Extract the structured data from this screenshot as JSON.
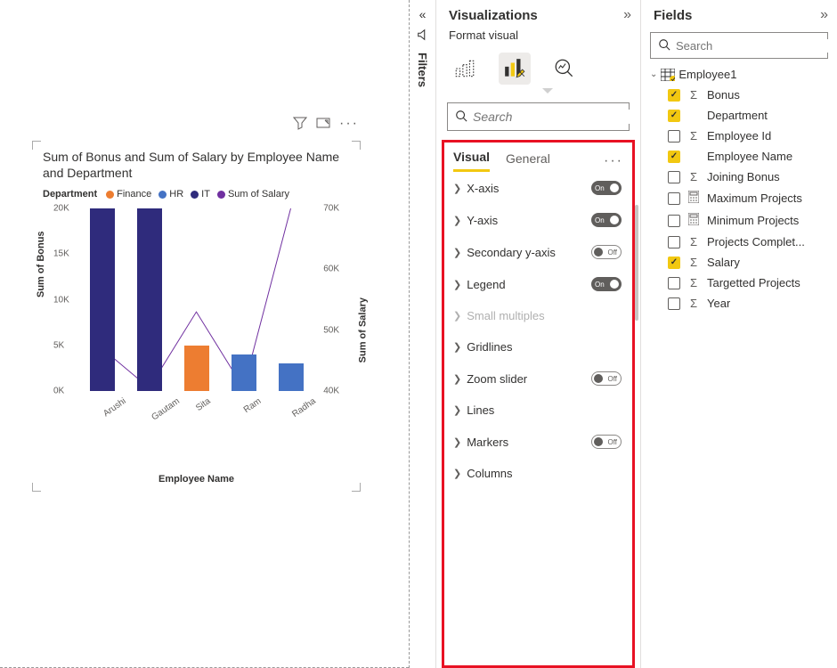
{
  "chart": {
    "title": "Sum of Bonus and Sum of Salary by Employee Name and Department",
    "legend_title": "Department",
    "legend_items": [
      {
        "label": "Finance",
        "color": "#ed7d31"
      },
      {
        "label": "HR",
        "color": "#4472c4"
      },
      {
        "label": "IT",
        "color": "#2f2b7c"
      },
      {
        "label": "Sum of Salary",
        "color": "#7030a0"
      }
    ],
    "x_axis": {
      "title": "Employee Name",
      "categories": [
        "Arushi",
        "Gautam",
        "Sita",
        "Ram",
        "Radha"
      ]
    },
    "y_left": {
      "title": "Sum of Bonus",
      "min": 0,
      "max": 20000,
      "ticks": [
        "0K",
        "5K",
        "10K",
        "15K",
        "20K"
      ]
    },
    "y_right": {
      "title": "Sum of Salary",
      "min": 40000,
      "max": 70000,
      "ticks": [
        "40K",
        "50K",
        "60K",
        "70K"
      ]
    },
    "bars": [
      {
        "x": 0,
        "value": 20000,
        "color": "#2f2b7c"
      },
      {
        "x": 1,
        "value": 20000,
        "color": "#2f2b7c"
      },
      {
        "x": 2,
        "value": 5000,
        "color": "#ed7d31"
      },
      {
        "x": 3,
        "value": 4000,
        "color": "#4472c4"
      },
      {
        "x": 4,
        "value": 3000,
        "color": "#4472c4"
      }
    ],
    "line": {
      "color": "#7030a0",
      "width": 2,
      "points": [
        {
          "x": 0,
          "value": 47000
        },
        {
          "x": 1,
          "value": 40500
        },
        {
          "x": 2,
          "value": 53000
        },
        {
          "x": 3,
          "value": 40500
        },
        {
          "x": 4,
          "value": 70000
        }
      ]
    }
  },
  "filters": {
    "label": "Filters"
  },
  "viz_pane": {
    "title": "Visualizations",
    "subtitle": "Format visual",
    "search_placeholder": "Search",
    "tabs": {
      "visual": "Visual",
      "general": "General"
    },
    "sections": [
      {
        "label": "X-axis",
        "toggle": "on"
      },
      {
        "label": "Y-axis",
        "toggle": "on"
      },
      {
        "label": "Secondary y-axis",
        "toggle": "off"
      },
      {
        "label": "Legend",
        "toggle": "on"
      },
      {
        "label": "Small multiples",
        "toggle": null,
        "disabled": true
      },
      {
        "label": "Gridlines",
        "toggle": null
      },
      {
        "label": "Zoom slider",
        "toggle": "off"
      },
      {
        "label": "Lines",
        "toggle": null
      },
      {
        "label": "Markers",
        "toggle": "off"
      },
      {
        "label": "Columns",
        "toggle": null
      }
    ]
  },
  "fields_pane": {
    "title": "Fields",
    "search_placeholder": "Search",
    "table": "Employee1",
    "fields": [
      {
        "name": "Bonus",
        "icon": "sigma",
        "checked": true
      },
      {
        "name": "Department",
        "icon": "",
        "checked": true
      },
      {
        "name": "Employee Id",
        "icon": "sigma",
        "checked": false
      },
      {
        "name": "Employee Name",
        "icon": "",
        "checked": true
      },
      {
        "name": "Joining Bonus",
        "icon": "sigma",
        "checked": false
      },
      {
        "name": "Maximum Projects",
        "icon": "calc",
        "checked": false
      },
      {
        "name": "Minimum Projects",
        "icon": "calc",
        "checked": false
      },
      {
        "name": "Projects Complet...",
        "icon": "sigma",
        "checked": false
      },
      {
        "name": "Salary",
        "icon": "sigma",
        "checked": true
      },
      {
        "name": "Targetted Projects",
        "icon": "sigma",
        "checked": false
      },
      {
        "name": "Year",
        "icon": "sigma",
        "checked": false
      }
    ]
  }
}
